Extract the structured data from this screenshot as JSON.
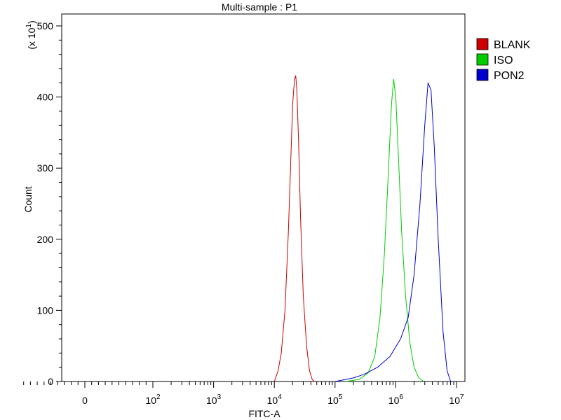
{
  "chart_data": {
    "type": "line",
    "title": "Multi-sample : P1",
    "xlabel": "FITC-A",
    "ylabel": "Count",
    "y_multiplier_label": "(x 10",
    "y_multiplier_exp": "1",
    "y_multiplier_close": ")",
    "xscale": "biexponential",
    "yscale": "linear",
    "ylim": [
      0,
      510
    ],
    "y_ticks": [
      0,
      100,
      200,
      300,
      400,
      500
    ],
    "x_ticks": [
      {
        "base": "0",
        "exp": ""
      },
      {
        "base": "10",
        "exp": "2"
      },
      {
        "base": "10",
        "exp": "3"
      },
      {
        "base": "10",
        "exp": "4"
      },
      {
        "base": "10",
        "exp": "5"
      },
      {
        "base": "10",
        "exp": "6"
      },
      {
        "base": "10",
        "exp": "7"
      }
    ],
    "grid": false,
    "legend_position": "right",
    "legend": [
      "BLANK",
      "ISO",
      "PON2"
    ],
    "series": [
      {
        "name": "BLANK",
        "color": "#cc0000",
        "x": [
          10000,
          11500,
          13000,
          15000,
          17000,
          18500,
          20000,
          21500,
          22500,
          23500,
          25000,
          27000,
          30000,
          34000,
          38000,
          42000,
          46000
        ],
        "y": [
          0,
          15,
          40,
          100,
          210,
          300,
          390,
          425,
          430,
          410,
          340,
          230,
          120,
          50,
          15,
          3,
          0
        ]
      },
      {
        "name": "ISO",
        "color": "#00cc00",
        "x": [
          150000,
          250000,
          350000,
          450000,
          550000,
          650000,
          750000,
          850000,
          920000,
          1000000,
          1100000,
          1250000,
          1450000,
          1700000,
          2000000,
          2400000,
          2900000
        ],
        "y": [
          0,
          3,
          12,
          35,
          90,
          180,
          290,
          390,
          425,
          400,
          320,
          210,
          120,
          55,
          20,
          5,
          0
        ]
      },
      {
        "name": "PON2",
        "color": "#0000cc",
        "x": [
          100000,
          200000,
          300000,
          500000,
          800000,
          1200000,
          1600000,
          2000000,
          2500000,
          3000000,
          3400000,
          3800000,
          4300000,
          5000000,
          6000000,
          7000000,
          8000000
        ],
        "y": [
          0,
          5,
          10,
          20,
          35,
          60,
          90,
          150,
          250,
          360,
          420,
          410,
          330,
          200,
          70,
          15,
          0
        ]
      }
    ]
  }
}
